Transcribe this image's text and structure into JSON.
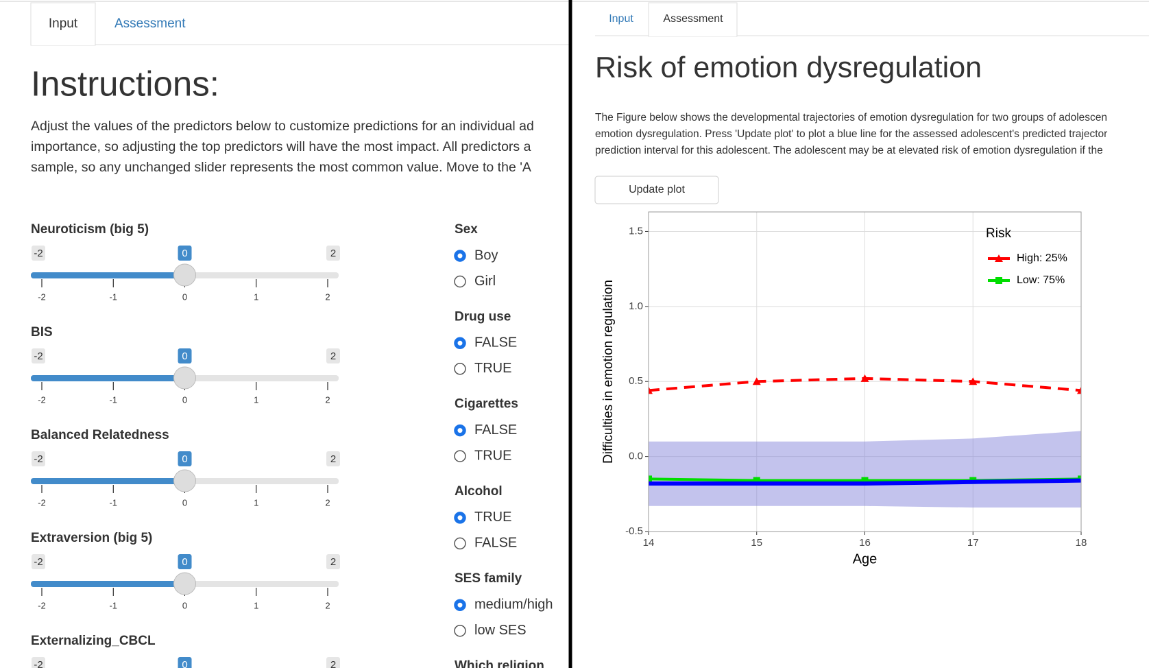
{
  "input_panel": {
    "tabs": [
      "Input",
      "Assessment"
    ],
    "title": "Instructions:",
    "text": [
      "Adjust the values of the predictors below to customize predictions for an individual ad",
      "importance, so adjusting the top predictors will have the most impact. All predictors a",
      "sample, so any unchanged slider represents the most common value. Move to the 'A"
    ],
    "sliders": [
      {
        "label": "Neuroticism (big 5)",
        "min": -2,
        "max": 2,
        "value": 0,
        "ticks": [
          -2,
          -1,
          0,
          1,
          2
        ]
      },
      {
        "label": "BIS",
        "min": -2,
        "max": 2,
        "value": 0,
        "ticks": [
          -2,
          -1,
          0,
          1,
          2
        ]
      },
      {
        "label": "Balanced Relatedness",
        "min": -2,
        "max": 2,
        "value": 0,
        "ticks": [
          -2,
          -1,
          0,
          1,
          2
        ]
      },
      {
        "label": "Extraversion (big 5)",
        "min": -2,
        "max": 2,
        "value": 0,
        "ticks": [
          -2,
          -1,
          0,
          1,
          2
        ]
      },
      {
        "label": "Externalizing_CBCL",
        "min": -2,
        "max": 2,
        "value": 0
      }
    ],
    "radio_groups": [
      {
        "label": "Sex",
        "options": [
          "Boy",
          "Girl"
        ],
        "selected": 0
      },
      {
        "label": "Drug use",
        "options": [
          "FALSE",
          "TRUE"
        ],
        "selected": 0
      },
      {
        "label": "Cigarettes",
        "options": [
          "FALSE",
          "TRUE"
        ],
        "selected": 0
      },
      {
        "label": "Alcohol",
        "options": [
          "TRUE",
          "FALSE"
        ],
        "selected": 0
      },
      {
        "label": "SES family",
        "options": [
          "medium/high",
          "low SES"
        ],
        "selected": 0
      },
      {
        "label": "Which religion",
        "options": []
      }
    ]
  },
  "assessment_panel": {
    "tabs": [
      "Input",
      "Assessment"
    ],
    "title": "Risk of emotion dysregulation",
    "text": [
      "The Figure below shows the developmental trajectories of emotion dysregulation for two groups of adolescen",
      "emotion dysregulation. Press 'Update plot' to plot a blue line for the assessed adolescent's predicted trajector",
      "prediction interval for this adolescent. The adolescent may be at elevated risk of emotion dysregulation if the"
    ],
    "button": "Update plot"
  },
  "chart_data": {
    "type": "line",
    "x_label": "Age",
    "y_label": "Difficulties in emotion regulation",
    "x": [
      14,
      15,
      16,
      17,
      18
    ],
    "xlim": [
      14,
      18
    ],
    "xticks": [
      14,
      15,
      16,
      17,
      18
    ],
    "ylim": [
      -0.5,
      1.63
    ],
    "yticks": [
      -0.5,
      {
        "value": 0,
        "label": "0.0"
      },
      0.5,
      {
        "value": 1,
        "label": "1.0"
      },
      1.5
    ],
    "grid": true,
    "legend_title": "Risk",
    "legend_position": "top-right",
    "series": [
      {
        "name": "High: 25%",
        "color": "#ff0000",
        "dashed": true,
        "marker": "triangle",
        "values": [
          0.44,
          0.5,
          0.52,
          0.5,
          0.44
        ]
      },
      {
        "name": "Low: 75%",
        "color": "#00dd00",
        "dashed": false,
        "marker": "square",
        "values": [
          -0.15,
          -0.16,
          -0.16,
          -0.16,
          -0.15
        ]
      }
    ],
    "prediction": {
      "color": "#0000ff",
      "band_color": "#7a7ad6",
      "values": [
        -0.18,
        -0.18,
        -0.18,
        -0.17,
        -0.16
      ],
      "lower": [
        -0.33,
        -0.33,
        -0.33,
        -0.34,
        -0.34
      ],
      "upper": [
        0.1,
        0.1,
        0.1,
        0.12,
        0.17
      ]
    }
  }
}
